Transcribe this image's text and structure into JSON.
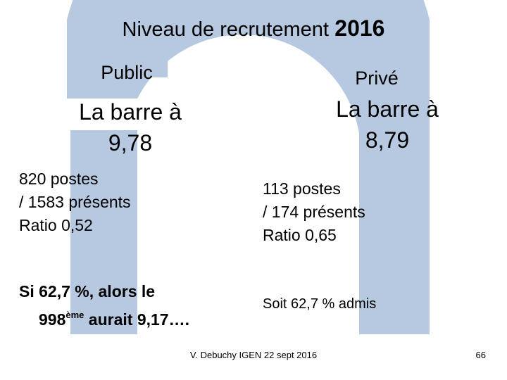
{
  "slide": {
    "title_main": "Niveau de recrutement",
    "title_year": "2016",
    "footer": "V. Debuchy IGEN 22 sept 2016",
    "page_number": "66"
  },
  "public": {
    "heading": "Public",
    "barre_line1": "La barre à",
    "barre_line2": "9,78",
    "postes": "820 postes",
    "presents": "/ 1583 présents",
    "ratio": "Ratio 0,52",
    "note_line1": "Si 62,7 %, alors le",
    "note_rank": "998",
    "note_suffix": "ème",
    "note_rest": " aurait 9,17…."
  },
  "prive": {
    "heading": "Privé",
    "barre_line1": "La barre à",
    "barre_line2": "8,79",
    "postes": "113 postes",
    "presents": "/ 174 présents",
    "ratio": "Ratio 0,65",
    "note": "Soit 62,7 % admis"
  },
  "theme": {
    "watermark_color": "#b7c9e0",
    "text_color": "#000000"
  }
}
